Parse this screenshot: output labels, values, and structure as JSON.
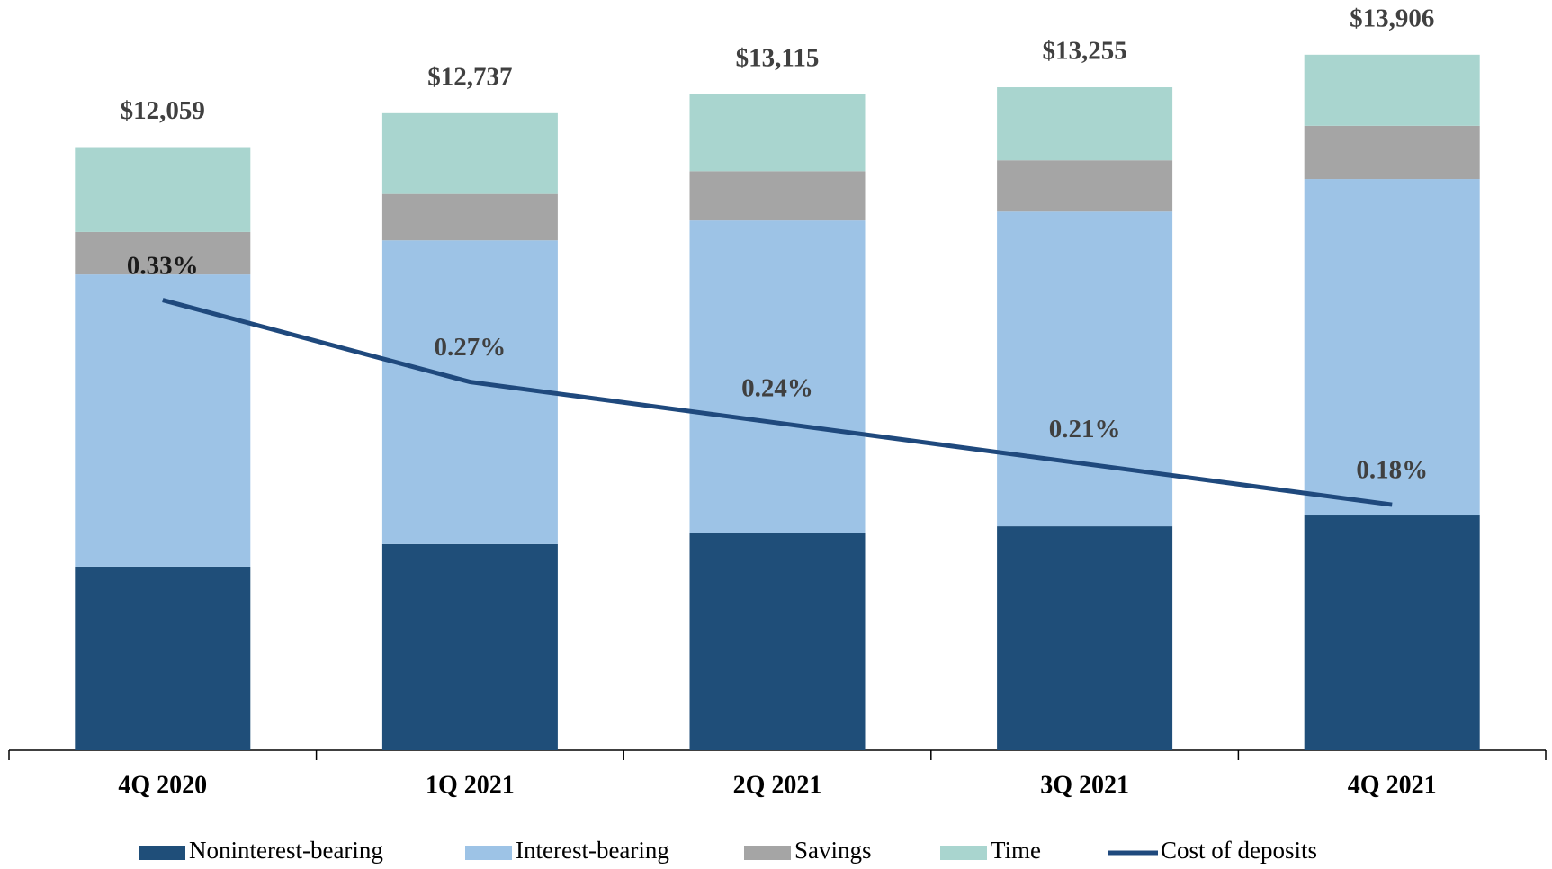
{
  "chart_data": {
    "type": "stacked-bar-line",
    "categories": [
      "4Q 2020",
      "1Q 2021",
      "2Q 2021",
      "3Q 2021",
      "4Q 2021"
    ],
    "series": [
      {
        "name": "Noninterest-bearing",
        "color": "#1f4e79",
        "values": [
          3670,
          4121,
          4339,
          4477,
          4694
        ]
      },
      {
        "name": "Interest-bearing",
        "color": "#9dc3e6",
        "values": [
          5842,
          6073,
          6252,
          6292,
          6726
        ]
      },
      {
        "name": "Savings",
        "color": "#a5a5a5",
        "values": [
          849,
          927,
          986,
          1026,
          1065
        ]
      },
      {
        "name": "Time",
        "color": "#a9d5cf",
        "values": [
          1698,
          1616,
          1538,
          1460,
          1421
        ]
      },
      {
        "name": "Cost of deposits",
        "color": "#1f497d",
        "axis": "y2",
        "type": "line",
        "values": [
          0.33,
          0.27,
          0.24,
          0.21,
          0.18
        ],
        "value_labels": [
          "0.33%",
          "0.27%",
          "0.24%",
          "0.21%",
          "0.18%"
        ]
      }
    ],
    "totals": {
      "values": [
        12059,
        12737,
        13115,
        13255,
        13906
      ],
      "value_labels": [
        "$12,059",
        "$12,737",
        "$13,115",
        "$13,255",
        "$13,906"
      ]
    },
    "ylim": [
      0,
      15000
    ],
    "y2lim": [
      0,
      0.55
    ],
    "legend": "bottom"
  }
}
